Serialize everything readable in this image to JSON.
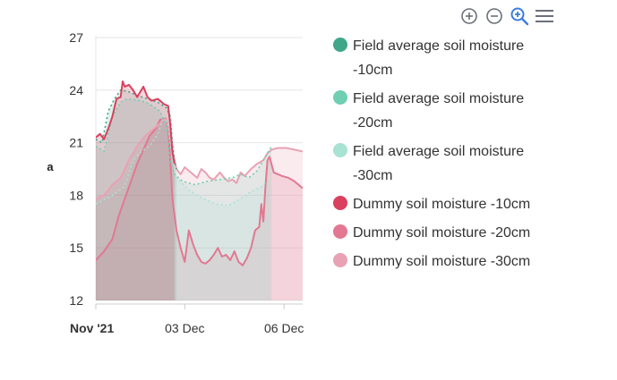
{
  "toolbar": {
    "icons": [
      "zoom-in-icon",
      "zoom-out-icon",
      "zoom-magnifier-icon",
      "menu-icon"
    ],
    "active_color": "#3b7de0",
    "color": "#6b6f7a"
  },
  "chart_data": {
    "type": "area",
    "ylabel": "a",
    "ylim": [
      12,
      27
    ],
    "yticks": [
      12,
      15,
      18,
      21,
      24,
      27
    ],
    "x_tick_labels": [
      {
        "label": "Nov '21",
        "bold": true
      },
      {
        "label": "03 Dec",
        "bold": false
      },
      {
        "label": "06 Dec",
        "bold": false
      }
    ],
    "x_domain": [
      0,
      100
    ],
    "x_tick_positions": [
      0,
      43,
      91
    ],
    "grid": true,
    "legend_position": "right",
    "series": [
      {
        "name": "Field average soil moisture -10cm",
        "color": "#3fa68a",
        "dashed": true,
        "values": [
          [
            0,
            21.2
          ],
          [
            3,
            21.0
          ],
          [
            6,
            22.8
          ],
          [
            9,
            23.5
          ],
          [
            12,
            24.0
          ],
          [
            16,
            23.9
          ],
          [
            20,
            23.7
          ],
          [
            25,
            23.5
          ],
          [
            30,
            23.3
          ],
          [
            34,
            23.0
          ],
          [
            36,
            22.5
          ],
          [
            37,
            21.0
          ],
          [
            38,
            20.0
          ],
          [
            39,
            19.5
          ]
        ]
      },
      {
        "name": "Field average soil moisture -20cm",
        "color": "#6fcfb3",
        "dashed": true,
        "values": [
          [
            0,
            20.8
          ],
          [
            4,
            20.5
          ],
          [
            8,
            22.5
          ],
          [
            12,
            23.3
          ],
          [
            15,
            23.5
          ],
          [
            22,
            23.4
          ],
          [
            26,
            23.2
          ],
          [
            31,
            22.8
          ],
          [
            34,
            22.0
          ],
          [
            36,
            20.0
          ],
          [
            38,
            19.2
          ],
          [
            42,
            18.8
          ],
          [
            48,
            18.6
          ],
          [
            54,
            18.8
          ],
          [
            60,
            18.9
          ],
          [
            66,
            19.0
          ],
          [
            70,
            19.2
          ],
          [
            74,
            19.0
          ],
          [
            78,
            19.4
          ],
          [
            81,
            20.0
          ],
          [
            85,
            20.8
          ]
        ]
      },
      {
        "name": "Field average soil moisture -30cm",
        "color": "#a8e2d2",
        "dashed": true,
        "values": [
          [
            0,
            17.5
          ],
          [
            8,
            18.0
          ],
          [
            14,
            18.5
          ],
          [
            18,
            20.0
          ],
          [
            22,
            20.5
          ],
          [
            26,
            20.8
          ],
          [
            30,
            21.5
          ],
          [
            33,
            22.5
          ],
          [
            35,
            22.0
          ],
          [
            37,
            20.0
          ],
          [
            39,
            19.0
          ],
          [
            45,
            18.3
          ],
          [
            52,
            17.8
          ],
          [
            58,
            17.5
          ],
          [
            64,
            17.4
          ],
          [
            70,
            17.8
          ],
          [
            75,
            18.2
          ],
          [
            80,
            18.5
          ],
          [
            84,
            18.9
          ]
        ]
      },
      {
        "name": "Dummy soil moisture -10cm",
        "color": "#d9415e",
        "dashed": false,
        "values": [
          [
            0,
            21.3
          ],
          [
            2,
            21.5
          ],
          [
            4,
            21.2
          ],
          [
            6,
            21.8
          ],
          [
            8,
            22.5
          ],
          [
            10,
            23.5
          ],
          [
            12,
            23.6
          ],
          [
            13,
            24.5
          ],
          [
            14,
            24.2
          ],
          [
            16,
            24.3
          ],
          [
            18,
            24.0
          ],
          [
            20,
            23.6
          ],
          [
            23,
            24.2
          ],
          [
            25,
            23.6
          ],
          [
            27,
            23.4
          ],
          [
            30,
            23.5
          ],
          [
            33,
            23.2
          ],
          [
            35,
            23.1
          ],
          [
            36,
            22.0
          ],
          [
            37,
            20.5
          ],
          [
            38,
            19.8
          ]
        ]
      },
      {
        "name": "Dummy soil moisture -20cm",
        "color": "#e27892",
        "dashed": false,
        "values": [
          [
            0,
            14.3
          ],
          [
            4,
            14.8
          ],
          [
            8,
            15.5
          ],
          [
            11,
            16.8
          ],
          [
            14,
            17.8
          ],
          [
            17,
            18.8
          ],
          [
            20,
            19.8
          ],
          [
            23,
            20.6
          ],
          [
            26,
            21.4
          ],
          [
            29,
            21.8
          ],
          [
            31,
            22.3
          ],
          [
            34,
            22.4
          ],
          [
            35,
            21.8
          ],
          [
            36,
            20.0
          ],
          [
            37,
            17.8
          ],
          [
            39,
            16.0
          ],
          [
            41,
            15.0
          ],
          [
            43,
            14.2
          ],
          [
            45,
            16.0
          ],
          [
            47,
            15.2
          ],
          [
            49,
            14.6
          ],
          [
            51,
            14.2
          ],
          [
            53,
            14.1
          ],
          [
            55,
            14.3
          ],
          [
            57,
            14.6
          ],
          [
            59,
            15.0
          ],
          [
            61,
            14.5
          ],
          [
            63,
            14.6
          ],
          [
            65,
            14.3
          ],
          [
            67,
            14.8
          ],
          [
            69,
            14.2
          ],
          [
            71,
            14.0
          ],
          [
            73,
            14.4
          ],
          [
            75,
            15.0
          ],
          [
            77,
            16.0
          ],
          [
            79,
            16.2
          ],
          [
            80,
            17.5
          ],
          [
            81,
            16.5
          ],
          [
            82,
            18.5
          ],
          [
            83,
            20.0
          ],
          [
            84,
            20.2
          ],
          [
            86,
            19.3
          ],
          [
            90,
            19.1
          ],
          [
            93,
            19.0
          ],
          [
            96,
            18.8
          ],
          [
            100,
            18.4
          ]
        ]
      },
      {
        "name": "Dummy soil moisture -30cm",
        "color": "#e8a2b4",
        "dashed": false,
        "values": [
          [
            0,
            17.8
          ],
          [
            4,
            18.0
          ],
          [
            8,
            18.6
          ],
          [
            12,
            19.0
          ],
          [
            16,
            20.0
          ],
          [
            20,
            20.8
          ],
          [
            24,
            21.4
          ],
          [
            28,
            21.8
          ],
          [
            32,
            22.2
          ],
          [
            34,
            22.4
          ],
          [
            35,
            22.0
          ],
          [
            37,
            20.5
          ],
          [
            39,
            19.5
          ],
          [
            41,
            19.2
          ],
          [
            43,
            19.6
          ],
          [
            45,
            19.4
          ],
          [
            47,
            19.2
          ],
          [
            49,
            19.0
          ],
          [
            51,
            19.5
          ],
          [
            53,
            19.3
          ],
          [
            55,
            19.0
          ],
          [
            57,
            18.9
          ],
          [
            60,
            19.3
          ],
          [
            62,
            19.0
          ],
          [
            64,
            18.8
          ],
          [
            66,
            18.9
          ],
          [
            68,
            18.7
          ],
          [
            70,
            19.3
          ],
          [
            72,
            19.1
          ],
          [
            75,
            19.5
          ],
          [
            78,
            19.8
          ],
          [
            81,
            20.0
          ],
          [
            83,
            20.4
          ],
          [
            85,
            20.6
          ],
          [
            88,
            20.7
          ],
          [
            92,
            20.7
          ],
          [
            96,
            20.6
          ],
          [
            100,
            20.5
          ]
        ]
      }
    ]
  }
}
